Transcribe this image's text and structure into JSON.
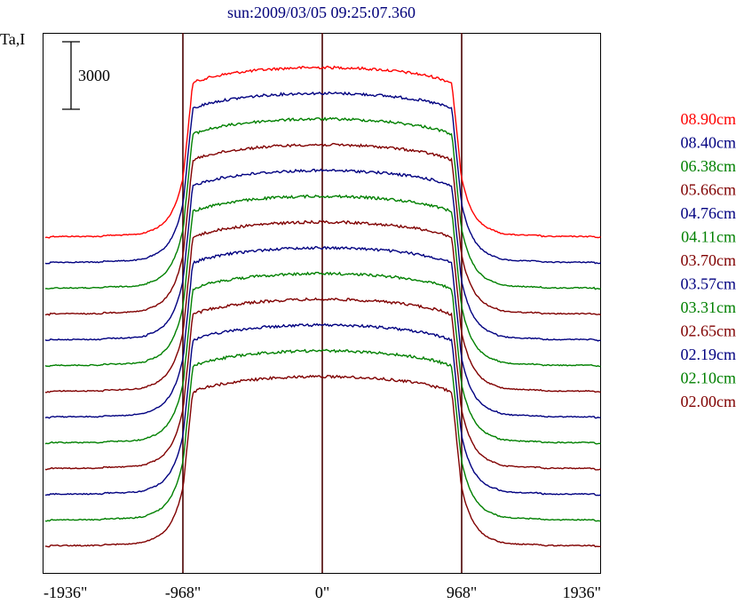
{
  "chart_data": {
    "type": "line",
    "title": "sun:2009/03/05 09:25:07.360",
    "ylabel": "Ta,I",
    "scale_bar_label": "3000",
    "scale_bar_value": 3000,
    "xlim": [
      -1936,
      1936
    ],
    "x_ticks": [
      -1936,
      -968,
      0,
      968,
      1936
    ],
    "x_tick_labels": [
      "-1936\"",
      "-968\"",
      "0\"",
      "968\"",
      "1936\""
    ],
    "vertical_markers": [
      -968,
      0,
      968
    ],
    "grid": false,
    "legend_position": "right",
    "series": [
      {
        "name": "08.90cm",
        "color": "#ff0000"
      },
      {
        "name": "08.40cm",
        "color": "#000080"
      },
      {
        "name": "06.38cm",
        "color": "#008000"
      },
      {
        "name": "05.66cm",
        "color": "#800000"
      },
      {
        "name": "04.76cm",
        "color": "#000080"
      },
      {
        "name": "04.11cm",
        "color": "#008000"
      },
      {
        "name": "03.70cm",
        "color": "#800000"
      },
      {
        "name": "03.57cm",
        "color": "#000080"
      },
      {
        "name": "03.31cm",
        "color": "#008000"
      },
      {
        "name": "02.65cm",
        "color": "#800000"
      },
      {
        "name": "02.19cm",
        "color": "#000080"
      },
      {
        "name": "02.10cm",
        "color": "#008000"
      },
      {
        "name": "02.00cm",
        "color": "#800000"
      }
    ]
  }
}
